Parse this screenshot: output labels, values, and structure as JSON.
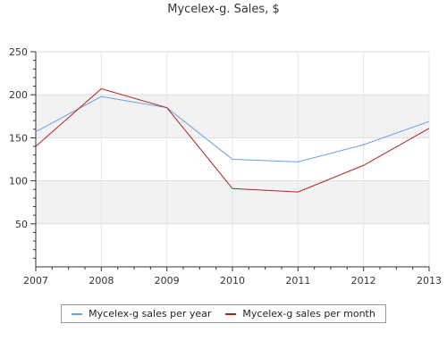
{
  "chart_data": {
    "type": "line",
    "title": "Mycelex-g. Sales, $",
    "xlabel": "",
    "ylabel": "",
    "categories": [
      "2007",
      "2008",
      "2009",
      "2010",
      "2011",
      "2012",
      "2013"
    ],
    "ylim": [
      0,
      250
    ],
    "yticks": [
      50,
      100,
      150,
      200,
      250
    ],
    "grid": true,
    "legend_position": "bottom",
    "series": [
      {
        "name": "Mycelex-g sales per year",
        "color": "#6a9ee6",
        "values": [
          157,
          198,
          185,
          125,
          122,
          142,
          169
        ]
      },
      {
        "name": "Mycelex-g sales per month",
        "color": "#b22222",
        "values": [
          140,
          207,
          185,
          91,
          87,
          118,
          161
        ]
      }
    ]
  }
}
